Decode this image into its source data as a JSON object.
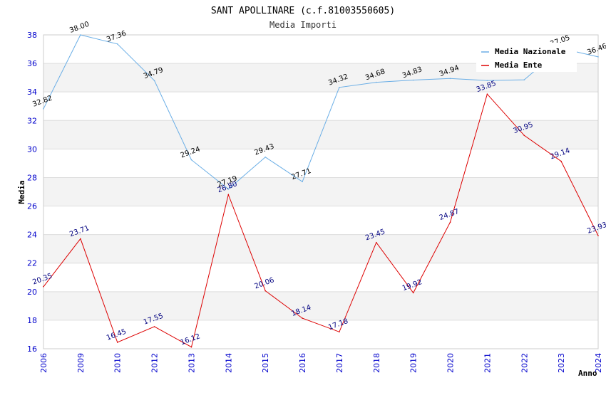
{
  "chart_data": {
    "type": "line",
    "title": "SANT APOLLINARE (c.f.81003550605)",
    "subtitle": "Media Importi",
    "xlabel": "Anno",
    "ylabel": "Media",
    "categories": [
      "2006",
      "2009",
      "2010",
      "2012",
      "2013",
      "2014",
      "2015",
      "2016",
      "2017",
      "2018",
      "2019",
      "2020",
      "2021",
      "2022",
      "2023",
      "2024"
    ],
    "ylim": [
      16,
      38
    ],
    "yticks": [
      16,
      18,
      20,
      22,
      24,
      26,
      28,
      30,
      32,
      34,
      36,
      38
    ],
    "grid": "alternating horizontal bands",
    "legend_position": "top-right",
    "series": [
      {
        "name": "Media Nazionale",
        "color": "#6aaee6",
        "values": [
          32.82,
          38.0,
          37.36,
          34.79,
          29.24,
          27.19,
          29.43,
          27.71,
          34.32,
          34.68,
          34.83,
          34.94,
          34.8,
          34.85,
          37.05,
          36.46
        ]
      },
      {
        "name": "Media Ente",
        "color": "#dd0000",
        "values": [
          20.35,
          23.71,
          16.45,
          17.55,
          16.12,
          26.8,
          20.06,
          18.14,
          17.18,
          23.45,
          19.92,
          24.87,
          33.85,
          30.95,
          29.14,
          23.93
        ]
      }
    ],
    "data_labels": {
      "Media Nazionale": [
        "32.82",
        "38.00",
        "37.36",
        "34.79",
        "29.24",
        "27.19",
        "29.43",
        "27.71",
        "34.32",
        "34.68",
        "34.83",
        "34.94",
        "",
        "",
        "37.05",
        "36.46"
      ],
      "Media Ente": [
        "20.35",
        "23.71",
        "16.45",
        "17.55",
        "16.12",
        "26.80",
        "20.06",
        "18.14",
        "17.18",
        "23.45",
        "19.92",
        "24.87",
        "33.85",
        "30.95",
        "29.14",
        "23.93"
      ]
    }
  }
}
